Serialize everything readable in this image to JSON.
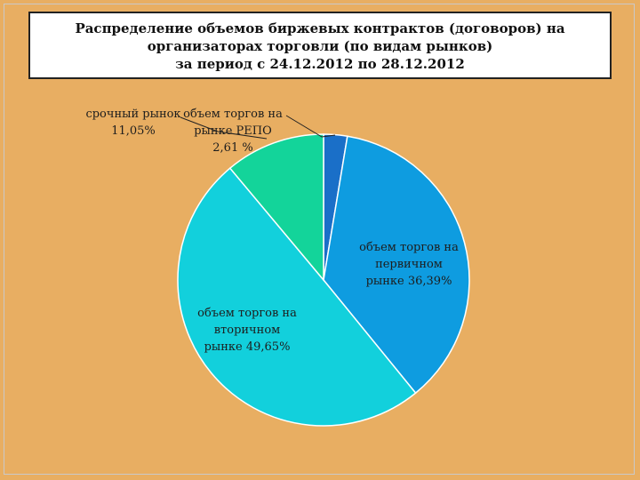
{
  "chart_data": {
    "type": "pie",
    "title": [
      "Распределение объемов биржевых контрактов (договоров) на",
      "организаторах торговли (по видам рынков)",
      "за период с 24.12.2012 по 28.12.2012"
    ],
    "slices": [
      {
        "label": [
          "объем торгов на",
          "рынке РЕПО",
          "2,61 %"
        ],
        "value": 2.61,
        "color": "#1a6fc8"
      },
      {
        "label": [
          "объем торгов на",
          "первичном",
          "рынке 36,39%"
        ],
        "value": 36.39,
        "color": "#0e9ce0"
      },
      {
        "label": [
          "объем торгов на",
          "вторичном",
          "рынке 49,65%"
        ],
        "value": 49.65,
        "color": "#12d0dc"
      },
      {
        "label": [
          "срочный рынок",
          "11,05%"
        ],
        "value": 11.05,
        "color": "#13d49a"
      }
    ],
    "start": "12 o'clock",
    "direction": "clockwise",
    "legend": "none"
  }
}
